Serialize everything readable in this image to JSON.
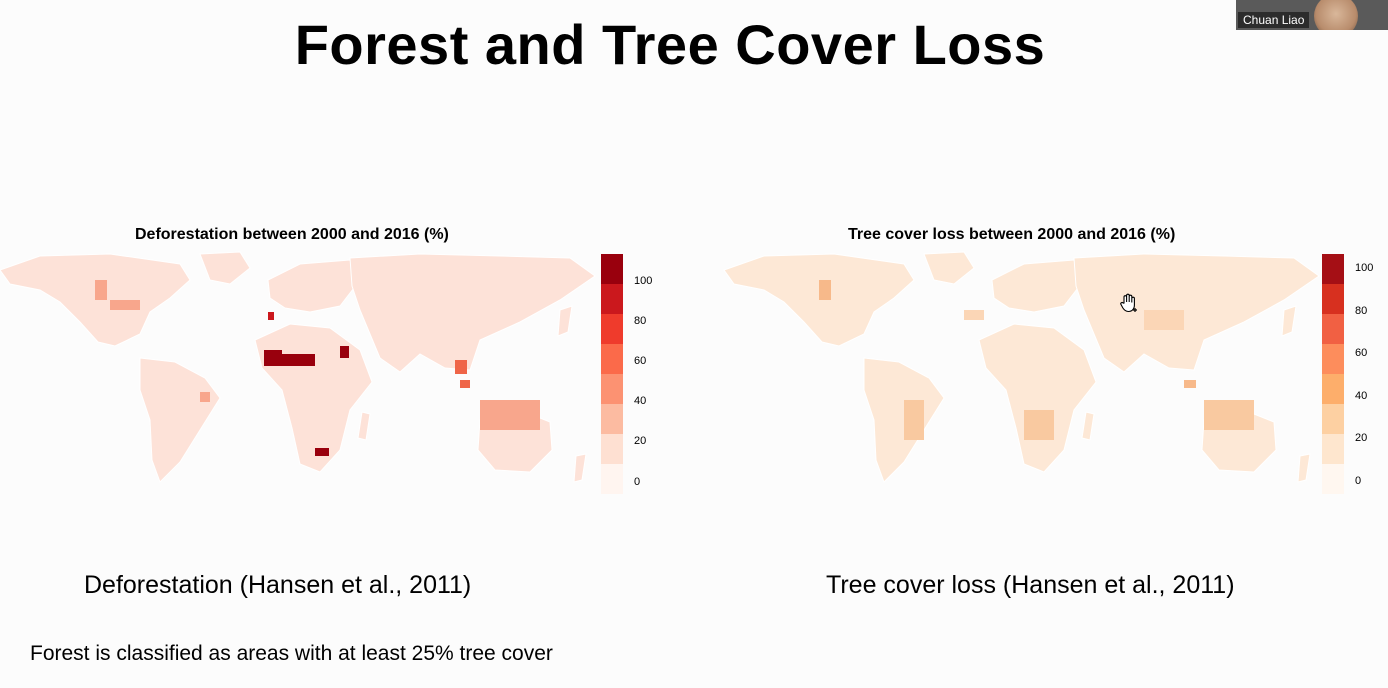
{
  "slide": {
    "title": "Forest and Tree Cover Loss",
    "note": "Forest is classified as areas with at least 25% tree cover"
  },
  "webcam": {
    "name": "Chuan Liao"
  },
  "maps": [
    {
      "title": "Deforestation between 2000 and 2016 (%)",
      "caption": "Deforestation (Hansen et al., 2011)",
      "legend": {
        "ticks": [
          "100",
          "80",
          "60",
          "40",
          "20",
          "0"
        ],
        "colors": [
          "#fff5f0",
          "#fee0d2",
          "#fcbba1",
          "#fc9272",
          "#fb6a4a",
          "#ef3b2c",
          "#cb181d",
          "#99000d"
        ]
      },
      "base_color": "#fde2d8",
      "hotspot_colors": [
        "#99000d",
        "#cb181d",
        "#ef6548",
        "#f8a68c"
      ]
    },
    {
      "title": "Tree cover loss between 2000 and 2016 (%)",
      "caption": "Tree cover loss (Hansen et al., 2011)",
      "legend": {
        "ticks": [
          "100",
          "80",
          "60",
          "40",
          "20",
          "0"
        ],
        "colors": [
          "#fff7f0",
          "#fee6ce",
          "#fdd0a2",
          "#fdae6b",
          "#fd8d5c",
          "#f16043",
          "#d7301f",
          "#a50f15"
        ]
      },
      "base_color": "#fde8d6",
      "hotspot_colors": [
        "#f7b98a",
        "#f9c9a0",
        "#f4a77a",
        "#fbd6b6"
      ]
    }
  ]
}
